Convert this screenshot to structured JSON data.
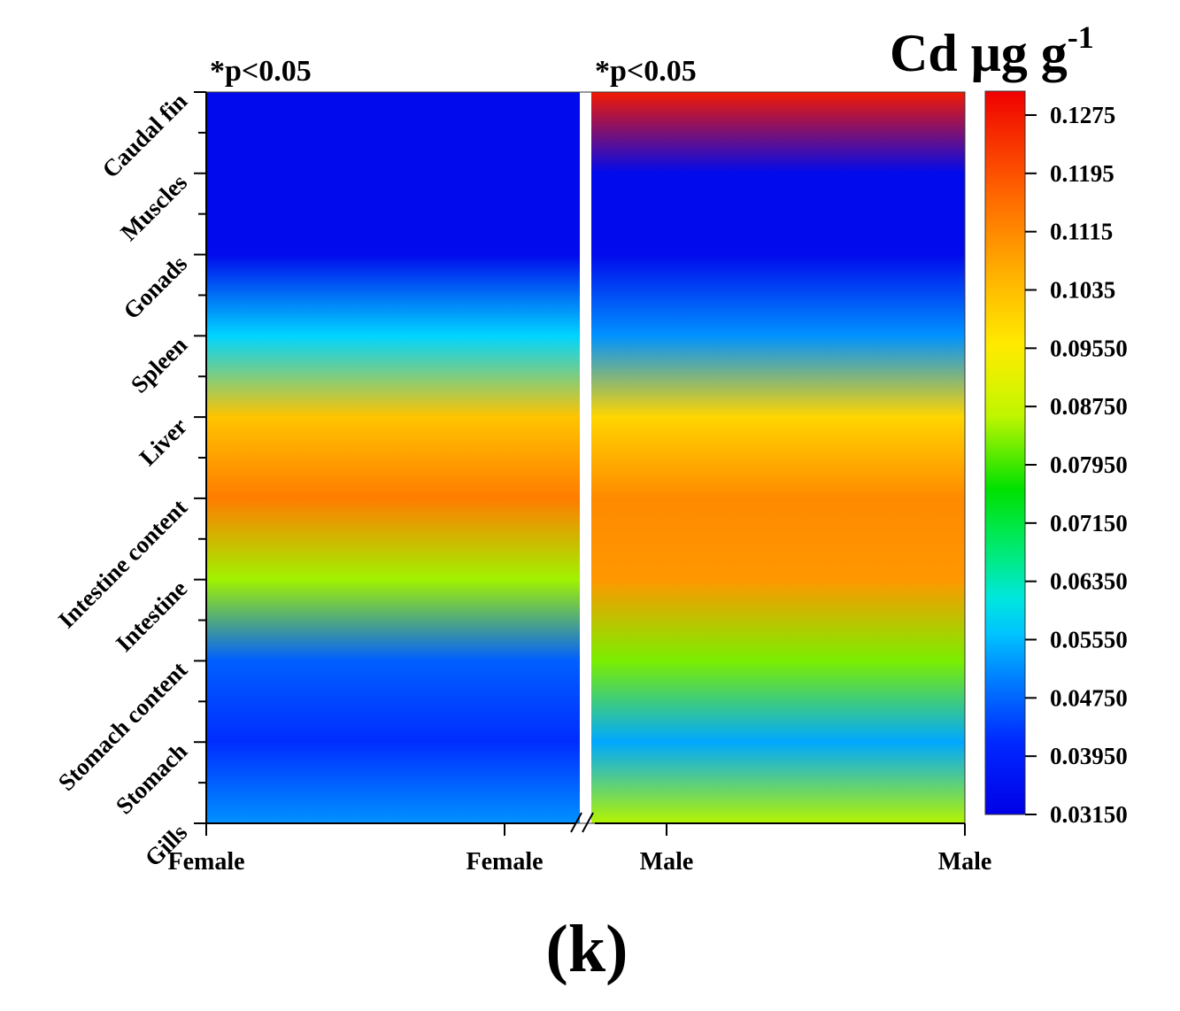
{
  "chart_data": {
    "type": "heatmap",
    "title": "Cd μg g",
    "title_superscript": "-1",
    "panel_label": "(k)",
    "annotations": [
      "*p<0.05",
      "*p<0.05"
    ],
    "x_categories": [
      "Female",
      "Female",
      "Male",
      "Male"
    ],
    "y_categories": [
      "Gills",
      "Stomach",
      "Stomach content",
      "Intestine",
      "Intestine content",
      "Liver",
      "Spleen",
      "Gonads",
      "Muscles",
      "Caudal fin"
    ],
    "colorbar": {
      "min": 0.0315,
      "max": 0.1315,
      "tick_labels": [
        "0.03150",
        "0.03950",
        "0.04750",
        "0.05550",
        "0.06350",
        "0.07150",
        "0.07950",
        "0.08750",
        "0.09550",
        "0.1035",
        "0.1115",
        "0.1195",
        "0.1275"
      ],
      "tick_values": [
        0.0315,
        0.0395,
        0.0475,
        0.0555,
        0.0635,
        0.0715,
        0.0795,
        0.0875,
        0.0955,
        0.1035,
        0.1115,
        0.1195,
        0.1275
      ]
    },
    "series": [
      {
        "name": "Female",
        "values": [
          0.052,
          0.042,
          0.047,
          0.085,
          0.114,
          0.103,
          0.058,
          0.034,
          0.034,
          0.034
        ]
      },
      {
        "name": "Male",
        "values": [
          0.086,
          0.054,
          0.083,
          0.11,
          0.112,
          0.1,
          0.052,
          0.034,
          0.034,
          0.128
        ]
      }
    ]
  }
}
